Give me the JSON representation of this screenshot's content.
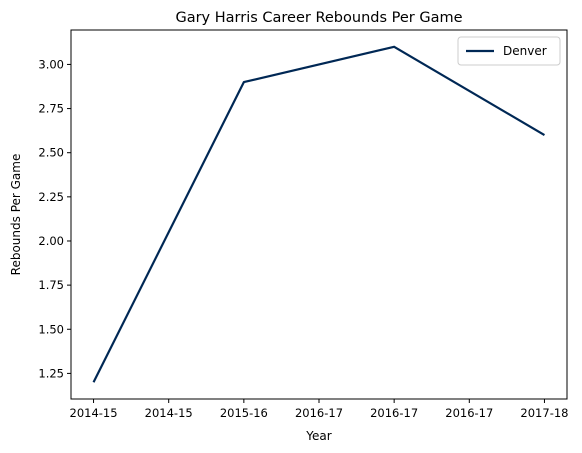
{
  "chart_data": {
    "type": "line",
    "title": "Gary Harris Career Rebounds Per Game",
    "xlabel": "Year",
    "ylabel": "Rebounds Per Game",
    "x": [
      0,
      2,
      4,
      6
    ],
    "x_tick_values": [
      0,
      1,
      2,
      3,
      4,
      5,
      6
    ],
    "x_tick_labels": [
      "2014-15",
      "2014-15",
      "2015-16",
      "2016-17",
      "2016-17",
      "2016-17",
      "2017-18"
    ],
    "y_ticks": [
      1.25,
      1.5,
      1.75,
      2.0,
      2.25,
      2.5,
      2.75,
      3.0
    ],
    "y_tick_labels": [
      "1.25",
      "1.50",
      "1.75",
      "2.00",
      "2.25",
      "2.50",
      "2.75",
      "3.00"
    ],
    "ylim": [
      1.105,
      3.195
    ],
    "xlim": [
      -0.3,
      6.3
    ],
    "grid": false,
    "legend_position": "top-right",
    "series": [
      {
        "name": "Denver",
        "color": "#002855",
        "values": [
          1.2,
          2.9,
          3.1,
          2.6
        ]
      }
    ]
  }
}
